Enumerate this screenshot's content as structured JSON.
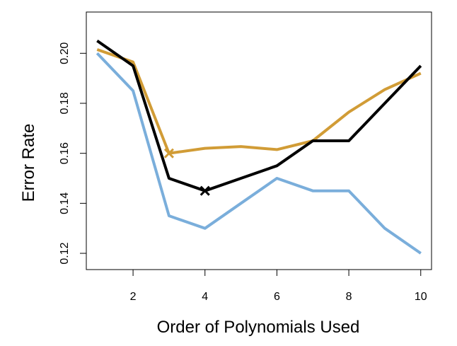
{
  "chart_data": {
    "type": "line",
    "title": "",
    "xlabel": "Order of Polynomials Used",
    "ylabel": "Error Rate",
    "xlim": [
      0.7,
      10.3
    ],
    "ylim": [
      0.1135,
      0.2165
    ],
    "xticks": [
      2,
      4,
      6,
      8,
      10
    ],
    "yticks": [
      0.12,
      0.14,
      0.16,
      0.18,
      0.2
    ],
    "xtick_labels": [
      "2",
      "4",
      "6",
      "8",
      "10"
    ],
    "ytick_labels": [
      "0.12",
      "0.14",
      "0.16",
      "0.18",
      "0.20"
    ],
    "grid": false,
    "legend": "none",
    "x": [
      1,
      2,
      3,
      4,
      5,
      6,
      7,
      8,
      9,
      10
    ],
    "series": [
      {
        "color": "#7AAEDB",
        "values": [
          0.2,
          0.185,
          0.135,
          0.13,
          0.14,
          0.15,
          0.145,
          0.145,
          0.13,
          0.12
        ]
      },
      {
        "color": "#D19C36",
        "values": [
          0.2015,
          0.1965,
          0.16,
          0.162,
          0.1627,
          0.1615,
          0.165,
          0.1765,
          0.1855,
          0.192
        ],
        "marker": {
          "x": 3,
          "y": 0.16,
          "symbol": "x"
        }
      },
      {
        "color": "#000000",
        "values": [
          0.205,
          0.195,
          0.15,
          0.145,
          0.15,
          0.155,
          0.165,
          0.165,
          0.18,
          0.195
        ],
        "marker": {
          "x": 4,
          "y": 0.145,
          "symbol": "x"
        }
      }
    ]
  }
}
